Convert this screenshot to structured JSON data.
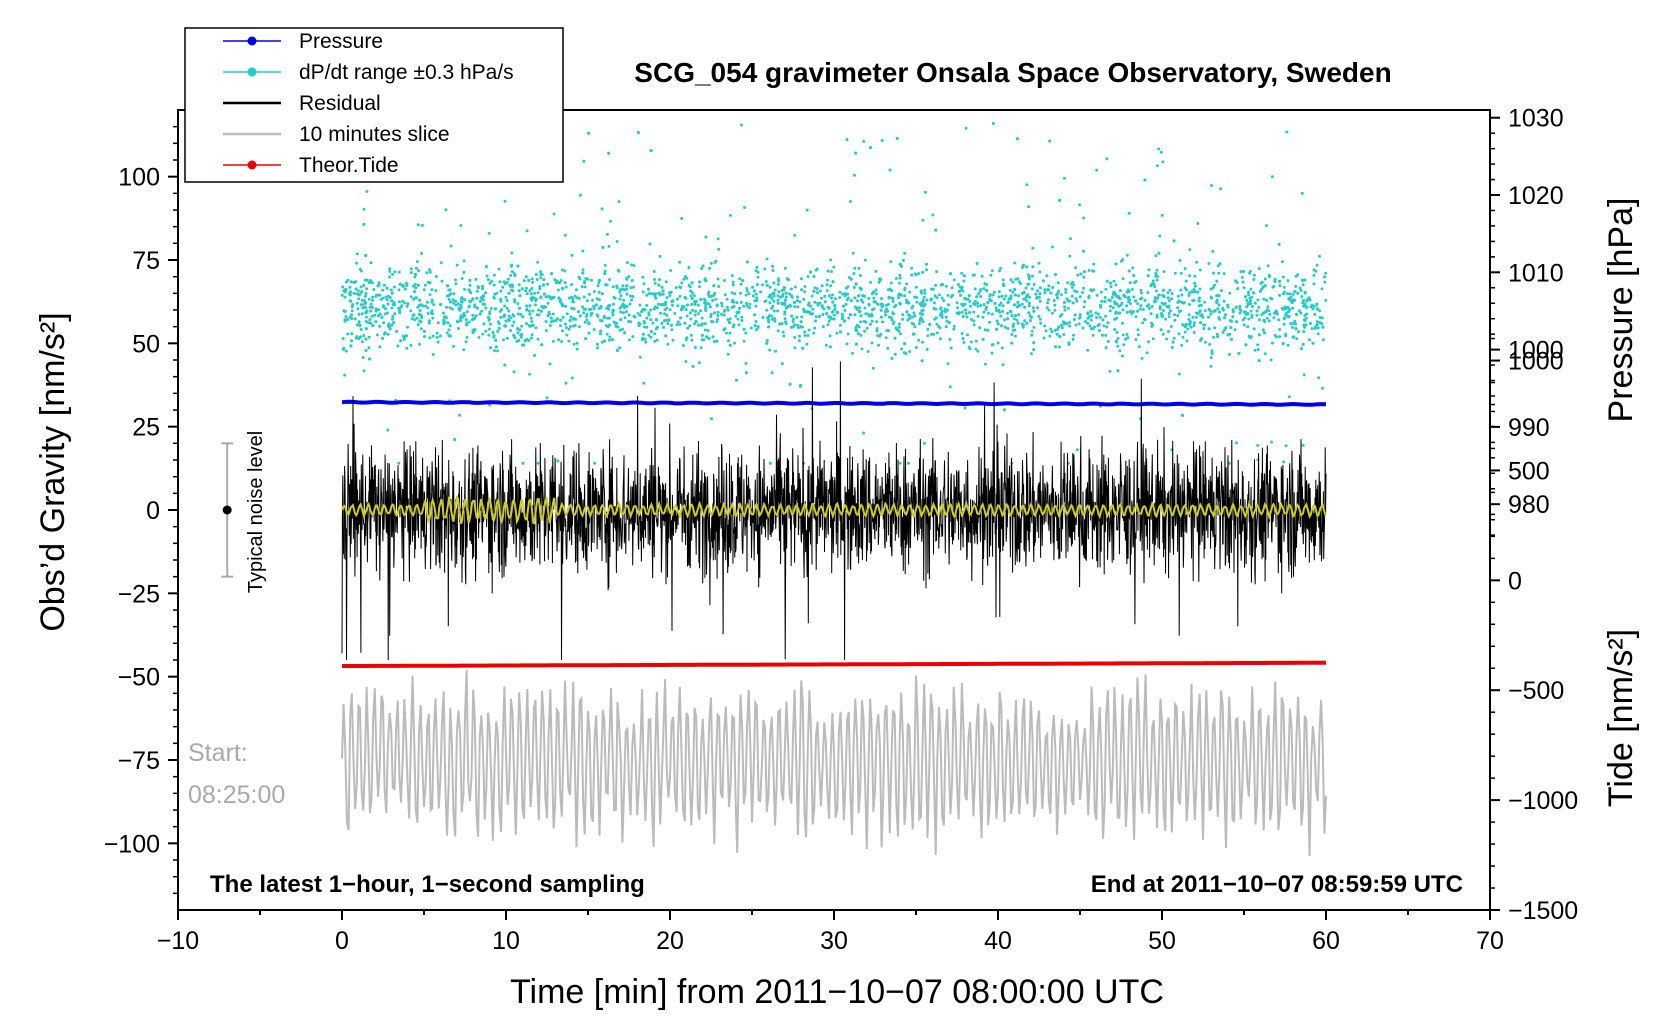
{
  "chart_data": {
    "type": "line",
    "title": "SCG_054 gravimeter Onsala Space Observatory, Sweden",
    "xlabel": "Time [min] from 2011−10−07 08:00:00 UTC",
    "ylabel_left": "Obs’d Gravity [nm/s²]",
    "ylabel_pressure": "Pressure [hPa]",
    "ylabel_tide": "Tide [nm/s²]",
    "xlim": [
      -10,
      70
    ],
    "ylim_left": [
      -120,
      120
    ],
    "ylim_pressure": [
      927.5,
      1031
    ],
    "ylim_tide": [
      -1500,
      2140
    ],
    "x_ticks": [
      -10,
      0,
      10,
      20,
      30,
      40,
      50,
      60,
      70
    ],
    "x_tick_labels": [
      "−10",
      "0",
      "10",
      "20",
      "30",
      "40",
      "50",
      "60",
      "70"
    ],
    "y_left_ticks": [
      100,
      75,
      50,
      25,
      0,
      -25,
      -50,
      -75,
      -100
    ],
    "y_left_tick_labels": [
      "100",
      "75",
      "50",
      "25",
      "0",
      "−25",
      "−50",
      "−75",
      "−100"
    ],
    "pressure_ticks": [
      1030,
      1020,
      1010,
      1000,
      990,
      980
    ],
    "pressure_tick_labels": [
      "1030",
      "1020",
      "1010",
      "1000",
      "990",
      "980"
    ],
    "tide_ticks": [
      1000,
      500,
      0,
      -500,
      -1000,
      -1500
    ],
    "tide_tick_labels": [
      "1000",
      "500",
      "0",
      "−500",
      "−1000",
      "−1500"
    ],
    "legend": [
      {
        "label": "Pressure",
        "color": "#0000ee",
        "marker": true
      },
      {
        "label": "dP/dt range ±0.3 hPa/s",
        "color": "#22cccc",
        "marker": true
      },
      {
        "label": "Residual",
        "color": "#000000",
        "marker": false
      },
      {
        "label": "10 minutes slice",
        "color": "#bbbbbb",
        "marker": false
      },
      {
        "label": "Theor.Tide",
        "color": "#ee0000",
        "marker": true
      }
    ],
    "annotations": {
      "start_label": "Start:",
      "start_time": "08:25:00",
      "bottom_left": "The latest 1−hour, 1−second sampling",
      "bottom_right": "End at 2011−10−07 08:59:59 UTC",
      "noise_label": "Typical noise level"
    },
    "noise_bar": {
      "x": -7,
      "center": 0,
      "half_range": 20
    },
    "series": [
      {
        "name": "Pressure",
        "axis": "pressure",
        "color": "#0000ee",
        "x_range": [
          0,
          60
        ],
        "start": 993.2,
        "end": 992.9
      },
      {
        "name": "dP/dt range ±0.3 hPa/s",
        "axis": "left",
        "color": "#22cccc",
        "x_range": [
          0,
          60
        ],
        "center": 61,
        "spread": 10,
        "max": 117,
        "min": 14
      },
      {
        "name": "Residual",
        "axis": "left",
        "color": "#000000",
        "x_range": [
          0,
          60
        ],
        "center": 0,
        "typical_amplitude": 18,
        "max": 55,
        "min": -45
      },
      {
        "name": "Residual (smoothed)",
        "axis": "left",
        "color": "#cccc22",
        "x_range": [
          0,
          60
        ],
        "center": 0,
        "amplitude": 2
      },
      {
        "name": "10 minutes slice",
        "axis": "left",
        "color": "#bbbbbb",
        "x_range": [
          0,
          60
        ],
        "center": -75,
        "amplitude": 25,
        "max": -37,
        "min": -106
      },
      {
        "name": "Theor.Tide",
        "axis": "tide",
        "color": "#ee0000",
        "x_range": [
          0,
          60
        ],
        "start": -390,
        "end": -375
      }
    ]
  }
}
